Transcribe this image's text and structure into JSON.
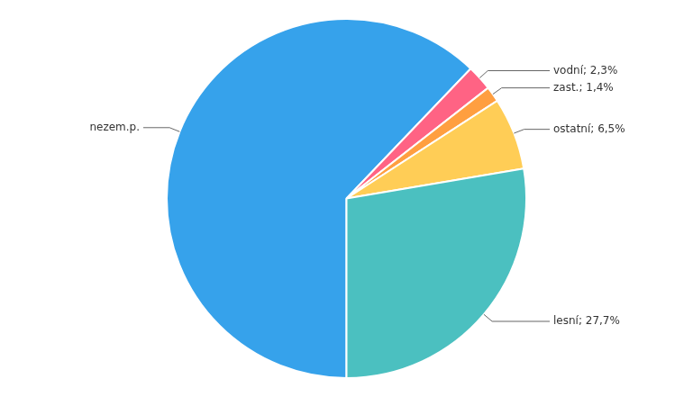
{
  "chart_data": {
    "type": "pie",
    "categories": [
      "nezem.p.",
      "vodní; 2,3%",
      "zast.; 1,4%",
      "ostatní; 6,5%",
      "lesní; 27,7%"
    ],
    "values": [
      62.2,
      2.3,
      1.4,
      6.5,
      27.7
    ]
  }
}
